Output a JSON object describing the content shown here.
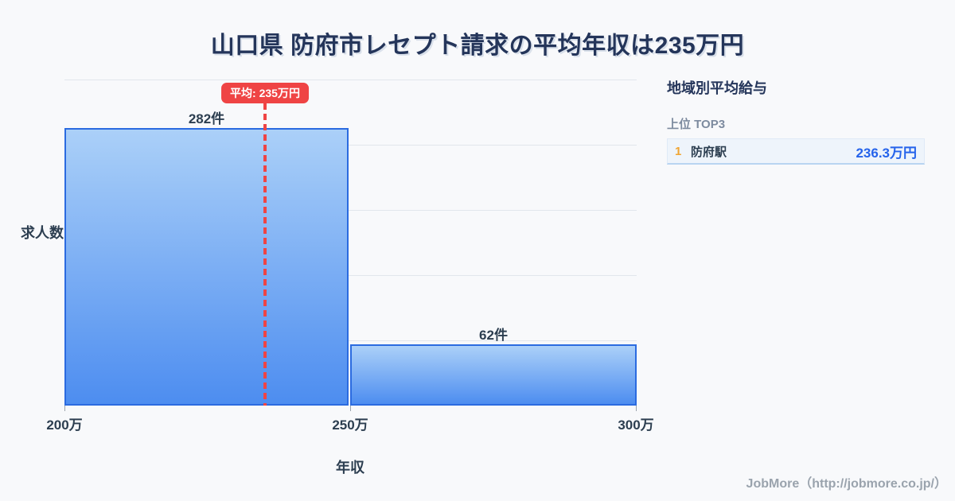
{
  "title": "山口県 防府市レセプト請求の平均年収は235万円",
  "chart_data": {
    "type": "bar",
    "title": "山口県 防府市レセプト請求の平均年収は235万円",
    "xlabel": "年収",
    "ylabel": "求人数",
    "categories": [
      "200万-250万",
      "250万-300万"
    ],
    "values": [
      282,
      62
    ],
    "bar_labels": [
      "282件",
      "62件"
    ],
    "x_ticks": [
      "200万",
      "250万",
      "300万"
    ],
    "x_range": [
      200,
      300
    ],
    "ylim": [
      0,
      331
    ],
    "grid": true,
    "legend": "none",
    "average_line": {
      "value": 235,
      "label": "平均: 235万円"
    }
  },
  "sidebar": {
    "title": "地域別平均給与",
    "subtitle": "上位 TOP3",
    "rows": [
      {
        "rank": "1",
        "name": "防府駅",
        "value": "236.3万円"
      }
    ]
  },
  "footer": {
    "credit": "JobMore（http://jobmore.co.jp/）"
  },
  "colors": {
    "background": "#f8f9fb",
    "title_navy": "#24355a",
    "bar_border": "#2b6be0",
    "bar_fill_top": "#abd0f8",
    "bar_fill_bottom": "#4d8df0",
    "gridline": "#e2e6ec",
    "average_red": "#ef4444",
    "value_blue": "#2563eb",
    "rank_orange": "#f0a532",
    "muted_gray": "#7d8b9f",
    "footer_gray": "#9aa3ad"
  }
}
